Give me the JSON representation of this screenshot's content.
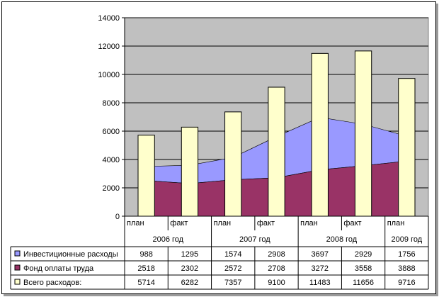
{
  "chart_data": {
    "type": "area",
    "ylim": [
      0,
      14000
    ],
    "ytick_step": 2000,
    "plot_background": "#c0c0c0",
    "grid": true,
    "columns": [
      {
        "sub": "план",
        "group": "2006 год"
      },
      {
        "sub": "факт",
        "group": "2006 год"
      },
      {
        "sub": "план",
        "group": "2007 год"
      },
      {
        "sub": "факт",
        "group": "2007 год"
      },
      {
        "sub": "план",
        "group": "2008 год"
      },
      {
        "sub": "факт",
        "group": "2008 год"
      },
      {
        "sub": "план",
        "group": "2009 год"
      }
    ],
    "groups": [
      {
        "label": "2006 год",
        "span": 2
      },
      {
        "label": "2007 год",
        "span": 2
      },
      {
        "label": "2008 год",
        "span": 2
      },
      {
        "label": "2009 год",
        "span": 1
      }
    ],
    "series": [
      {
        "name": "Инвестиционные расходы",
        "kind": "stacked-area",
        "color": "#9999ff",
        "values": [
          988,
          1295,
          1574,
          2908,
          3697,
          2929,
          1756
        ]
      },
      {
        "name": "Фонд оплаты труда",
        "kind": "stacked-area",
        "color": "#993366",
        "values": [
          2518,
          2302,
          2572,
          2708,
          3272,
          3558,
          3888
        ]
      },
      {
        "name": "Всего расходов:",
        "kind": "bar",
        "color": "#ffffcc",
        "values": [
          5714,
          6282,
          7357,
          9100,
          11483,
          11656,
          9716
        ]
      }
    ]
  }
}
